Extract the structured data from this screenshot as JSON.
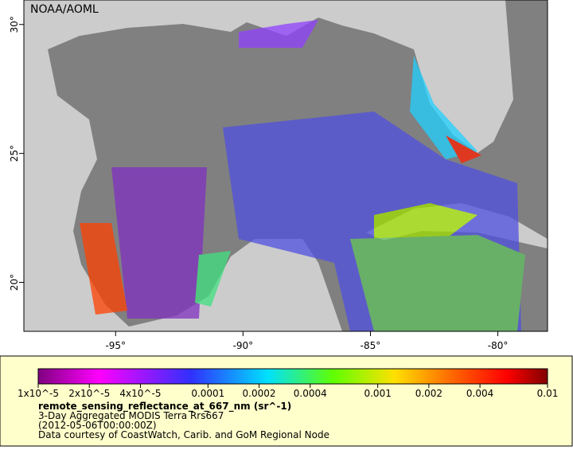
{
  "map": {
    "credit": "NOAA/AOML",
    "xlim": [
      -98.6,
      -78.05
    ],
    "ylim": [
      18.1,
      30.95
    ],
    "xticks": [
      {
        "value": -95,
        "label": "-95°"
      },
      {
        "value": -90,
        "label": "-90°"
      },
      {
        "value": -85,
        "label": "-85°"
      },
      {
        "value": -80,
        "label": "-80°"
      }
    ],
    "yticks": [
      {
        "value": 20,
        "label": "20°"
      },
      {
        "value": 25,
        "label": "25°"
      },
      {
        "value": 30,
        "label": "30°"
      }
    ]
  },
  "colorbar": {
    "clim": [
      1e-05,
      0.01
    ],
    "log_scale": true,
    "ticks": [
      {
        "value": 1e-05,
        "label": "1x10^-5"
      },
      {
        "value": 2e-05,
        "label": "2x10^-5"
      },
      {
        "value": 4e-05,
        "label": "4x10^-5"
      },
      {
        "value": 0.0001,
        "label": "0.0001"
      },
      {
        "value": 0.0002,
        "label": "0.0002"
      },
      {
        "value": 0.0004,
        "label": "0.0004"
      },
      {
        "value": 0.001,
        "label": "0.001"
      },
      {
        "value": 0.002,
        "label": "0.002"
      },
      {
        "value": 0.004,
        "label": "0.004"
      },
      {
        "value": 0.01,
        "label": "0.01"
      }
    ]
  },
  "legend": {
    "variable": "remote_sensing_reflectance_at_667_nm (sr^-1)",
    "dataset": "3-Day Aggregated MODIS Terra Rrs667",
    "time": "(2012-05-06T00:00:00Z)",
    "courtesy": "Data courtesy of CoastWatch, Carib. and GoM Regional Node"
  }
}
